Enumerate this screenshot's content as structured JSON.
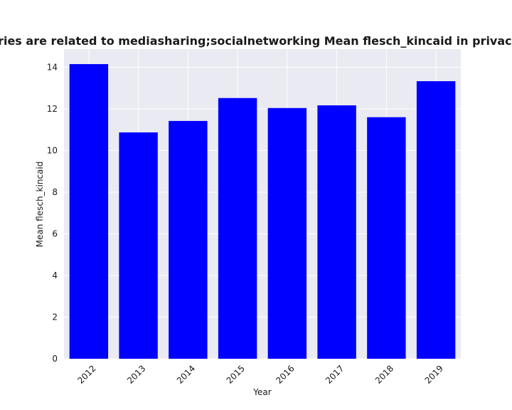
{
  "chart_data": {
    "type": "bar",
    "title": "Categories are related to mediasharing;socialnetworking Mean flesch_kincaid in privacy policies",
    "xlabel": "Year",
    "ylabel": "Mean flesch_kincaid",
    "categories": [
      "2012",
      "2013",
      "2014",
      "2015",
      "2016",
      "2017",
      "2018",
      "2019"
    ],
    "values": [
      14.15,
      10.87,
      11.42,
      12.52,
      12.04,
      12.17,
      11.6,
      13.33
    ],
    "ylim": [
      0,
      14.87
    ],
    "yticks": [
      0,
      2,
      4,
      6,
      8,
      10,
      12,
      14
    ],
    "grid": true,
    "bar_color": "#0000ff",
    "plot_background": "#eaeaf2",
    "grid_color": "#ffffff"
  }
}
